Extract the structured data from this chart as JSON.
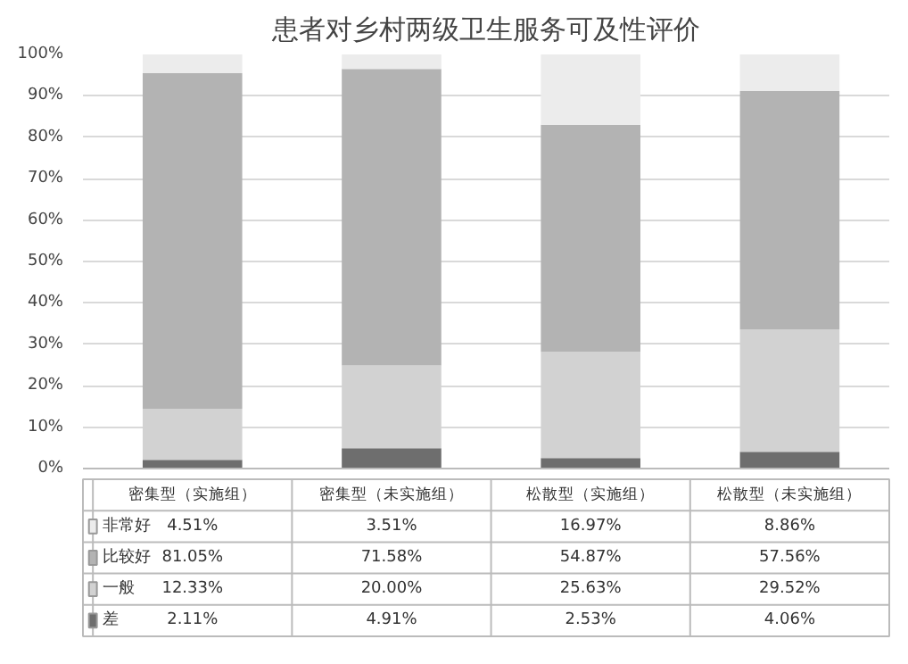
{
  "chart_data": {
    "type": "bar",
    "title": "患者对乡村两级卫生服务可及性评价",
    "categories": [
      "密集型（实施组）",
      "密集型（未实施组）",
      "松散型（实施组）",
      "松散型（未实施组）"
    ],
    "stacked": true,
    "series": [
      {
        "name": "差",
        "color": "#6e6e6e",
        "values": [
          2.11,
          4.91,
          2.53,
          4.06
        ],
        "value_labels": [
          "2.11%",
          "4.91%",
          "2.53%",
          "4.06%"
        ]
      },
      {
        "name": "一般",
        "color": "#d2d2d2",
        "values": [
          12.33,
          20.0,
          25.63,
          29.52
        ],
        "value_labels": [
          "12.33%",
          "20.00%",
          "25.63%",
          "29.52%"
        ]
      },
      {
        "name": "比较好",
        "color": "#b3b3b3",
        "values": [
          81.05,
          71.58,
          54.87,
          57.56
        ],
        "value_labels": [
          "81.05%",
          "71.58%",
          "54.87%",
          "57.56%"
        ]
      },
      {
        "name": "非常好",
        "color": "#ececec",
        "values": [
          4.51,
          3.51,
          16.97,
          8.86
        ],
        "value_labels": [
          "4.51%",
          "3.51%",
          "16.97%",
          "8.86%"
        ]
      }
    ],
    "ylim": [
      0,
      100
    ],
    "yticks": [
      {
        "value": 0,
        "label": "0%"
      },
      {
        "value": 10,
        "label": "10%"
      },
      {
        "value": 20,
        "label": "20%"
      },
      {
        "value": 30,
        "label": "30%"
      },
      {
        "value": 40,
        "label": "40%"
      },
      {
        "value": 50,
        "label": "50%"
      },
      {
        "value": 60,
        "label": "60%"
      },
      {
        "value": 70,
        "label": "70%"
      },
      {
        "value": 80,
        "label": "80%"
      },
      {
        "value": 90,
        "label": "90%"
      },
      {
        "value": 100,
        "label": "100%"
      }
    ],
    "grid": "y",
    "legend": "bottom"
  }
}
